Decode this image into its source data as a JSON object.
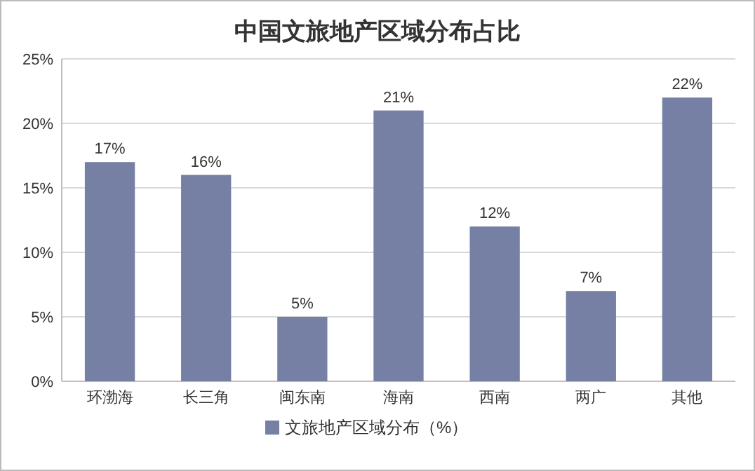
{
  "chart_data": {
    "type": "bar",
    "title": "中国文旅地产区域分布占比",
    "categories": [
      "环渤海",
      "长三角",
      "闽东南",
      "海南",
      "西南",
      "两广",
      "其他"
    ],
    "series": [
      {
        "name": "文旅地产区域分布（%）",
        "color": "#7580a4",
        "values": [
          17,
          16,
          5,
          21,
          12,
          7,
          22
        ],
        "value_labels": [
          "17%",
          "16%",
          "5%",
          "21%",
          "12%",
          "7%",
          "22%"
        ]
      }
    ],
    "ylim": [
      0,
      25
    ],
    "yticks": [
      {
        "value": 0,
        "label": "0%"
      },
      {
        "value": 5,
        "label": "5%"
      },
      {
        "value": 10,
        "label": "10%"
      },
      {
        "value": 15,
        "label": "15%"
      },
      {
        "value": 20,
        "label": "20%"
      },
      {
        "value": 25,
        "label": "25%"
      }
    ],
    "grid": "y",
    "legend": "bottom"
  }
}
